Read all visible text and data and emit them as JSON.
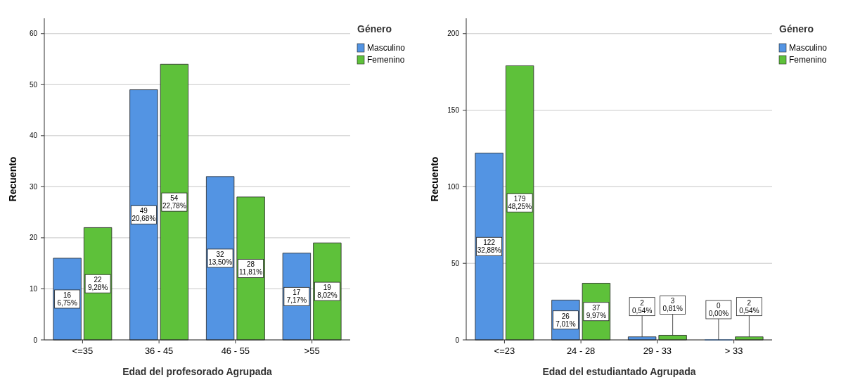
{
  "chart_data": [
    {
      "type": "bar",
      "xlabel": "Edad del profesorado Agrupada",
      "ylabel": "Recuento",
      "legend_title": "Género",
      "legend": "top right",
      "grid": "y",
      "categories": [
        "<=35",
        "36 - 45",
        "46 - 55",
        ">55"
      ],
      "ylim": [
        0,
        63
      ],
      "yticks": [
        0,
        10,
        20,
        30,
        40,
        50,
        60
      ],
      "series": [
        {
          "name": "Masculino",
          "color": "#5394e3",
          "values": [
            16,
            49,
            32,
            17
          ],
          "value_labels": [
            "16\n6,75%",
            "49\n20,68%",
            "32\n13,50%",
            "17\n7,17%"
          ]
        },
        {
          "name": "Femenino",
          "color": "#5ec13a",
          "values": [
            22,
            54,
            28,
            19
          ],
          "value_labels": [
            "22\n9,28%",
            "54\n22,78%",
            "28\n11,81%",
            "19\n8,02%"
          ]
        }
      ]
    },
    {
      "type": "bar",
      "xlabel": "Edad del estudiantado Agrupada",
      "ylabel": "Recuento",
      "legend_title": "Género",
      "legend": "top right",
      "grid": "y",
      "categories": [
        "<=23",
        "24 - 28",
        "29 - 33",
        "> 33"
      ],
      "ylim": [
        0,
        210
      ],
      "yticks": [
        0,
        50,
        100,
        150,
        200
      ],
      "series": [
        {
          "name": "Masculino",
          "color": "#5394e3",
          "values": [
            122,
            26,
            2,
            0
          ],
          "value_labels": [
            "122\n32,88%",
            "26\n7,01%",
            "2\n0,54%",
            "0\n0,00%"
          ]
        },
        {
          "name": "Femenino",
          "color": "#5ec13a",
          "values": [
            179,
            37,
            3,
            2
          ],
          "value_labels": [
            "179\n48,25%",
            "37\n9,97%",
            "3\n0,81%",
            "2\n0,54%"
          ]
        }
      ]
    }
  ]
}
